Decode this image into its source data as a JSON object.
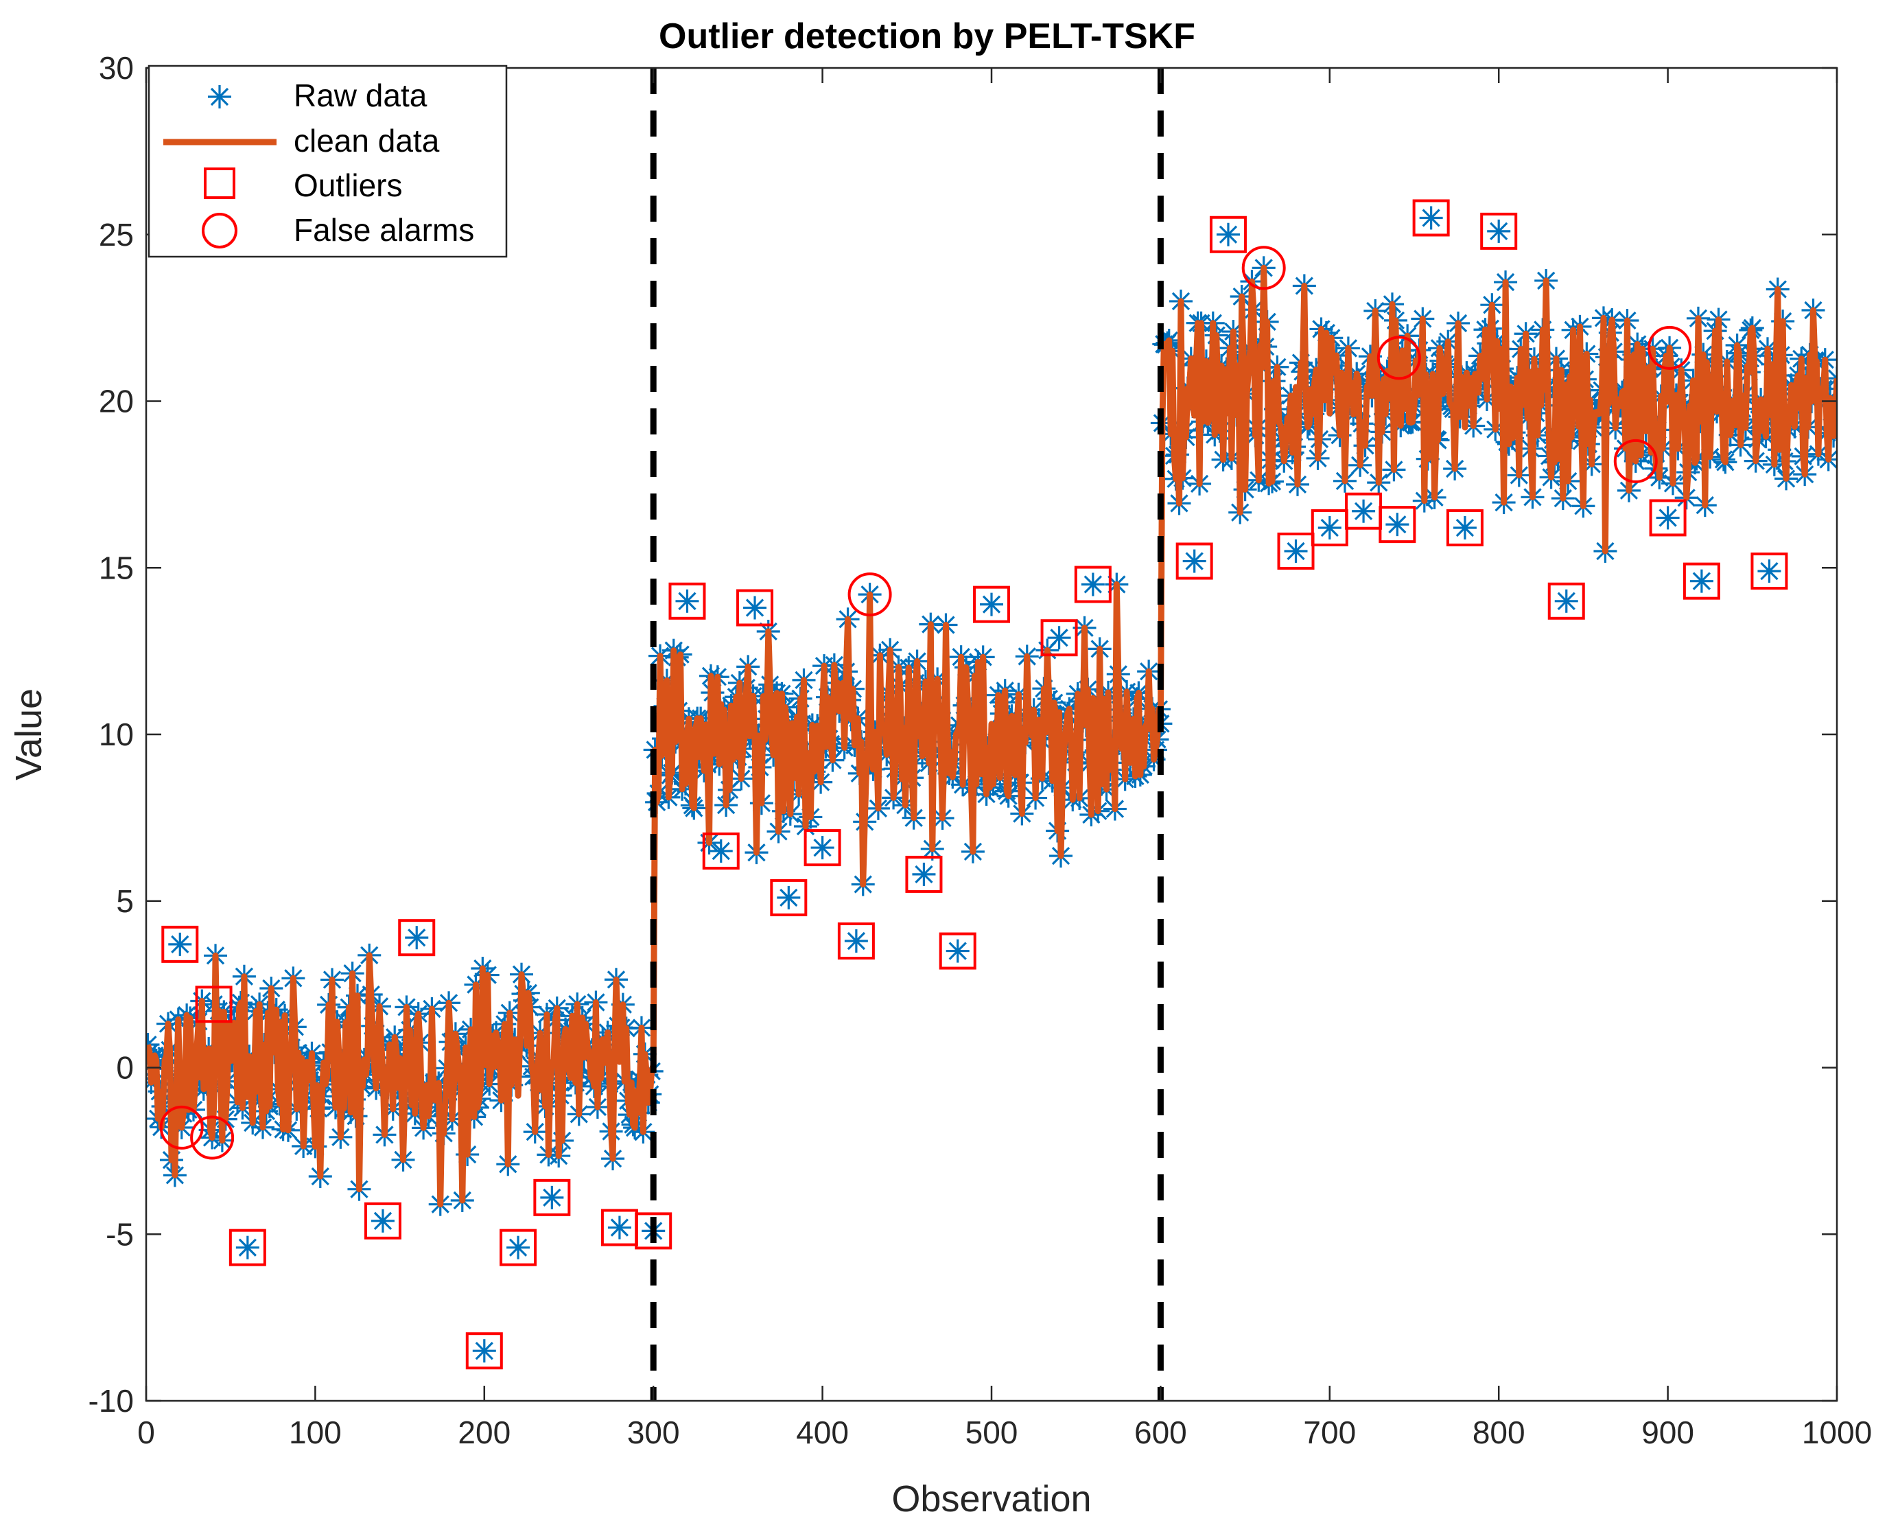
{
  "chart_data": {
    "type": "scatter",
    "title": "Outlier detection by PELT-TSKF",
    "xlabel": "Observation",
    "ylabel": "Value",
    "xlim": [
      0,
      1000
    ],
    "ylim": [
      -10,
      30
    ],
    "xticks": [
      0,
      100,
      200,
      300,
      400,
      500,
      600,
      700,
      800,
      900,
      1000
    ],
    "yticks": [
      -10,
      -5,
      0,
      5,
      10,
      15,
      20,
      25,
      30
    ],
    "grid": false,
    "legend_position": "top-left",
    "segments": [
      {
        "start": 1,
        "end": 300,
        "mean": 0
      },
      {
        "start": 301,
        "end": 600,
        "mean": 10
      },
      {
        "start": 601,
        "end": 1000,
        "mean": 20
      }
    ],
    "change_points": [
      300,
      600
    ],
    "series": [
      {
        "name": "Raw data",
        "marker": "asterisk",
        "color": "#0072BD"
      },
      {
        "name": "clean data",
        "style": "line",
        "color": "#D95319"
      },
      {
        "name": "Outliers",
        "marker": "square",
        "color": "#FF0000"
      },
      {
        "name": "False alarms",
        "marker": "circle",
        "color": "#FF0000"
      }
    ],
    "outliers": [
      {
        "x": 20,
        "y": 3.7
      },
      {
        "x": 40,
        "y": 1.9
      },
      {
        "x": 60,
        "y": -5.4
      },
      {
        "x": 140,
        "y": -4.6
      },
      {
        "x": 160,
        "y": 3.9
      },
      {
        "x": 200,
        "y": -8.5
      },
      {
        "x": 220,
        "y": -5.4
      },
      {
        "x": 240,
        "y": -3.9
      },
      {
        "x": 280,
        "y": -4.8
      },
      {
        "x": 300,
        "y": -4.9
      },
      {
        "x": 320,
        "y": 14.0
      },
      {
        "x": 340,
        "y": 6.5
      },
      {
        "x": 360,
        "y": 13.8
      },
      {
        "x": 380,
        "y": 5.1
      },
      {
        "x": 400,
        "y": 6.6
      },
      {
        "x": 420,
        "y": 3.8
      },
      {
        "x": 460,
        "y": 5.8
      },
      {
        "x": 480,
        "y": 3.5
      },
      {
        "x": 500,
        "y": 13.9
      },
      {
        "x": 540,
        "y": 12.9
      },
      {
        "x": 560,
        "y": 14.5
      },
      {
        "x": 620,
        "y": 15.2
      },
      {
        "x": 640,
        "y": 25.0
      },
      {
        "x": 680,
        "y": 15.5
      },
      {
        "x": 700,
        "y": 16.2
      },
      {
        "x": 720,
        "y": 16.7
      },
      {
        "x": 740,
        "y": 16.3
      },
      {
        "x": 760,
        "y": 25.5
      },
      {
        "x": 780,
        "y": 16.2
      },
      {
        "x": 800,
        "y": 25.1
      },
      {
        "x": 840,
        "y": 14.0
      },
      {
        "x": 900,
        "y": 16.5
      },
      {
        "x": 920,
        "y": 14.6
      },
      {
        "x": 960,
        "y": 14.9
      }
    ],
    "false_alarms": [
      {
        "x": 21,
        "y": -1.8
      },
      {
        "x": 39,
        "y": -2.1
      },
      {
        "x": 428,
        "y": 14.2
      },
      {
        "x": 661,
        "y": 24.0
      },
      {
        "x": 741,
        "y": 21.3
      },
      {
        "x": 881,
        "y": 18.2
      },
      {
        "x": 901,
        "y": 21.6
      }
    ]
  }
}
